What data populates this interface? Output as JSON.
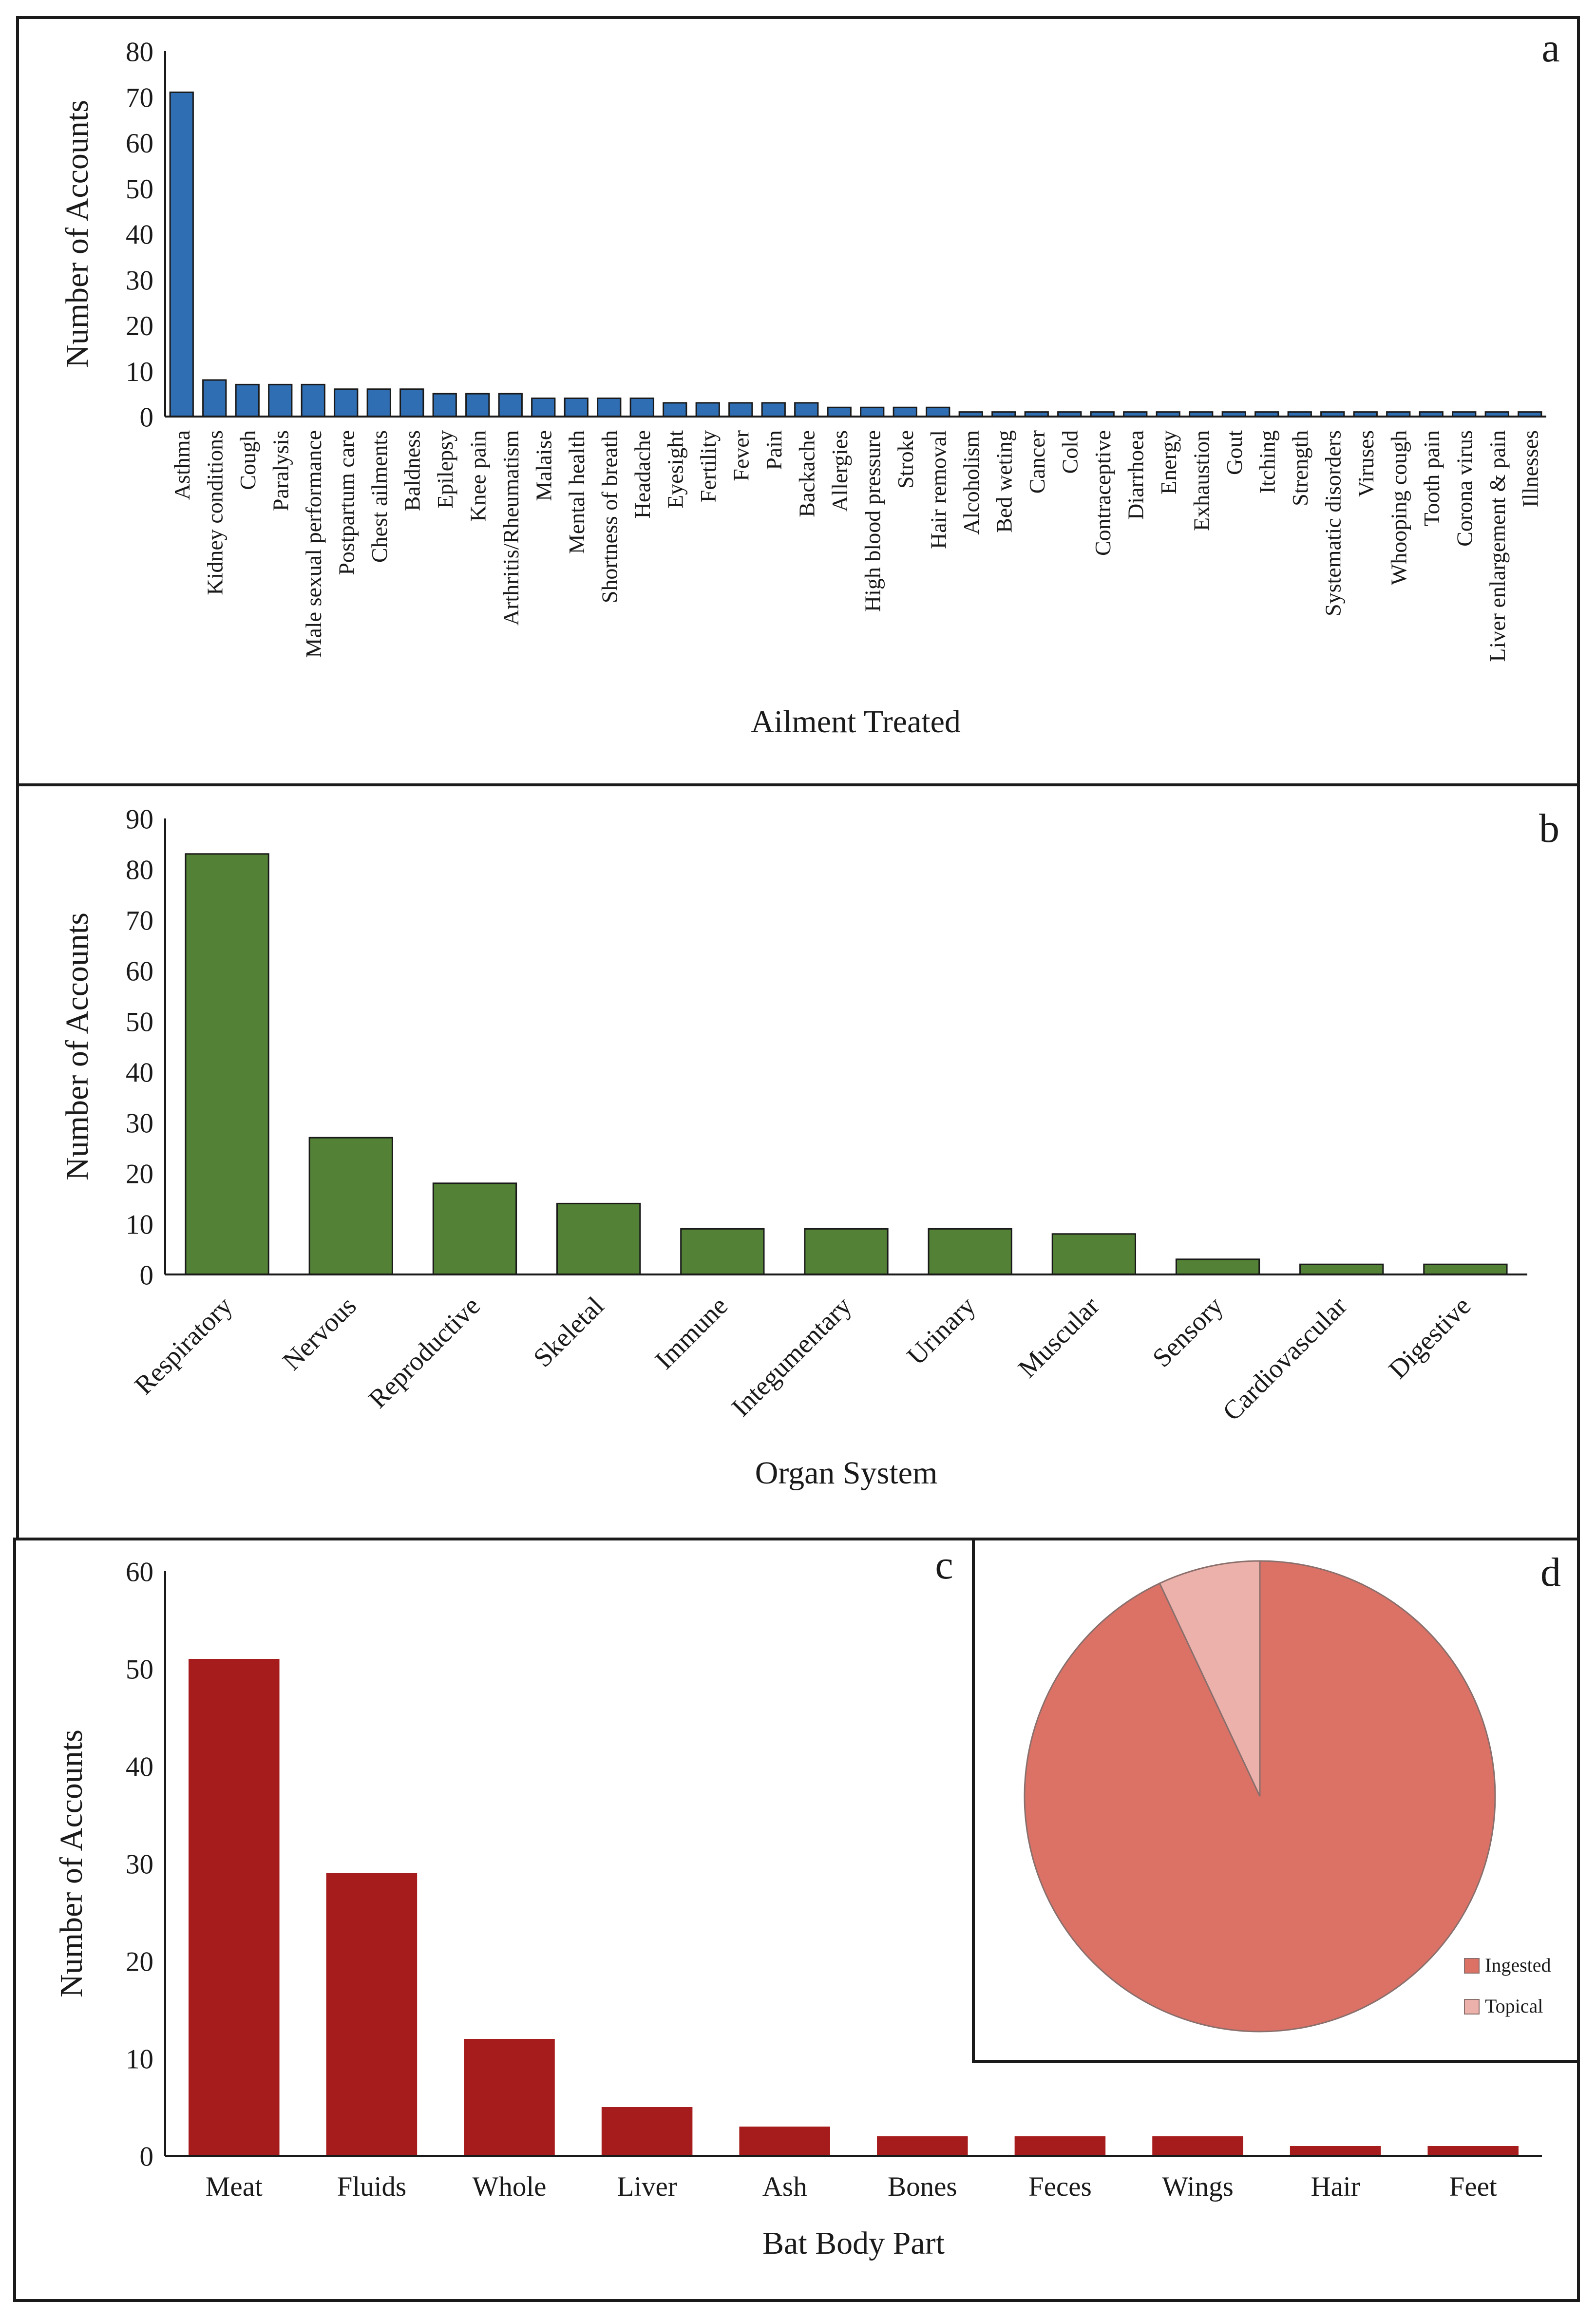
{
  "colors": {
    "panel_a_bar": "#2f6eb3",
    "panel_b_bar": "#538135",
    "panel_c_bar": "#a61b1b",
    "pie_ingested": "#dc7266",
    "pie_topical": "#ecb1aa",
    "frame": "#1a1a1a"
  },
  "chart_data": [
    {
      "panel": "a",
      "type": "bar",
      "xlabel": "Ailment Treated",
      "ylabel": "Number of Accounts",
      "ylim": [
        0,
        80
      ],
      "yticks": [
        0,
        10,
        20,
        30,
        40,
        50,
        60,
        70,
        80
      ],
      "grid": false,
      "categories": [
        "Asthma",
        "Kidney conditions",
        "Cough",
        "Paralysis",
        "Male sexual performance",
        "Postpartum care",
        "Chest ailments",
        "Baldness",
        "Epilepsy",
        "Knee pain",
        "Arthritis/Rheumatism",
        "Malaise",
        "Mental health",
        "Shortness of breath",
        "Headache",
        "Eyesight",
        "Fertility",
        "Fever",
        "Pain",
        "Backache",
        "Allergies",
        "High blood pressure",
        "Stroke",
        "Hair removal",
        "Alcoholism",
        "Bed weting",
        "Cancer",
        "Cold",
        "Contraceptive",
        "Diarrhoea",
        "Energy",
        "Exhaustion",
        "Gout",
        "Itching",
        "Strength",
        "Systematic disorders",
        "Viruses",
        "Whooping cough",
        "Tooth pain",
        "Corona virus",
        "Liver enlargement & pain",
        "Illnesses"
      ],
      "values": [
        71,
        8,
        7,
        7,
        7,
        6,
        6,
        6,
        5,
        5,
        5,
        4,
        4,
        4,
        4,
        3,
        3,
        3,
        3,
        3,
        2,
        2,
        2,
        2,
        1,
        1,
        1,
        1,
        1,
        1,
        1,
        1,
        1,
        1,
        1,
        1,
        1,
        1,
        1,
        1,
        1,
        1
      ]
    },
    {
      "panel": "b",
      "type": "bar",
      "xlabel": "Organ System",
      "ylabel": "Number of Accounts",
      "ylim": [
        0,
        90
      ],
      "yticks": [
        0,
        10,
        20,
        30,
        40,
        50,
        60,
        70,
        80,
        90
      ],
      "grid": false,
      "categories": [
        "Respiratory",
        "Nervous",
        "Reproductive",
        "Skeletal",
        "Immune",
        "Integumentary",
        "Urinary",
        "Muscular",
        "Sensory",
        "Cardiovascular",
        "Digestive"
      ],
      "values": [
        83,
        27,
        18,
        14,
        9,
        9,
        9,
        8,
        3,
        2,
        2
      ]
    },
    {
      "panel": "c",
      "type": "bar",
      "xlabel": "Bat Body Part",
      "ylabel": "Number of Accounts",
      "ylim": [
        0,
        60
      ],
      "yticks": [
        0,
        10,
        20,
        30,
        40,
        50,
        60
      ],
      "grid": false,
      "categories": [
        "Meat",
        "Fluids",
        "Whole",
        "Liver",
        "Ash",
        "Bones",
        "Feces",
        "Wings",
        "Hair",
        "Feet"
      ],
      "values": [
        51,
        29,
        12,
        5,
        3,
        2,
        2,
        2,
        1,
        1
      ]
    },
    {
      "panel": "d",
      "type": "pie",
      "labels": [
        "Ingested",
        "Topical"
      ],
      "values": [
        93,
        7
      ],
      "legend": "bottom-right"
    }
  ]
}
